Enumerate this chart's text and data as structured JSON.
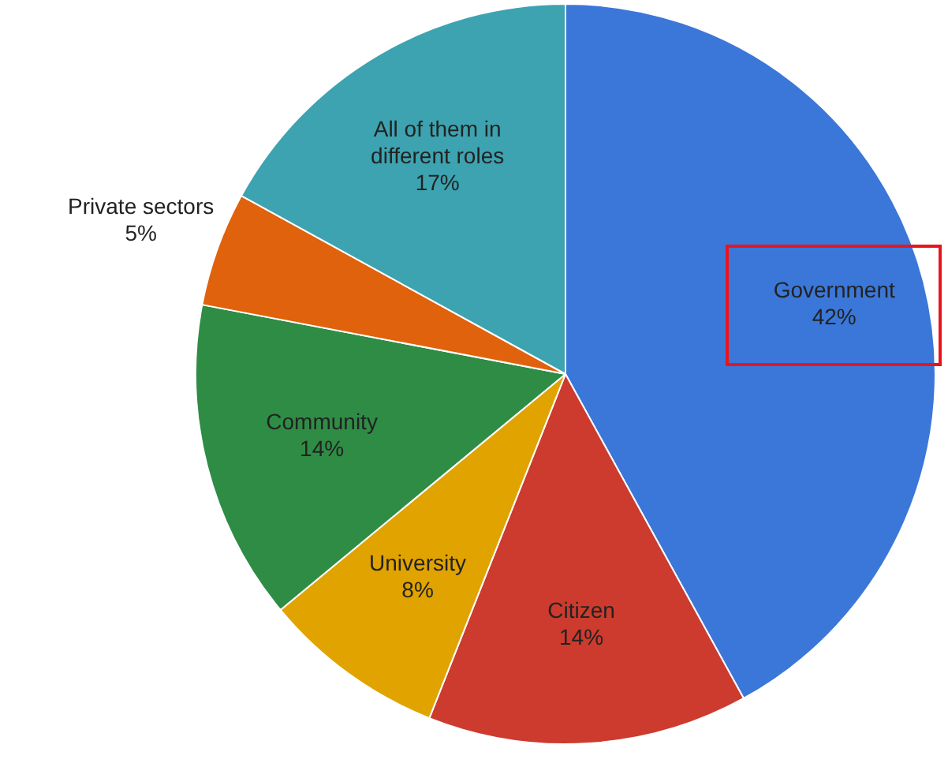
{
  "chart_data": {
    "type": "pie",
    "categories": [
      "Government",
      "Citizen",
      "University",
      "Community",
      "Private sectors",
      "All of them in different roles"
    ],
    "values": [
      42,
      14,
      8,
      14,
      5,
      17
    ],
    "colors": [
      "#3b77d8",
      "#cc3b2e",
      "#e0a300",
      "#2f8c45",
      "#e0620c",
      "#3da3b0"
    ],
    "value_labels": [
      "42%",
      "14%",
      "8%",
      "14%",
      "5%",
      "17%"
    ],
    "legend": false
  }
}
